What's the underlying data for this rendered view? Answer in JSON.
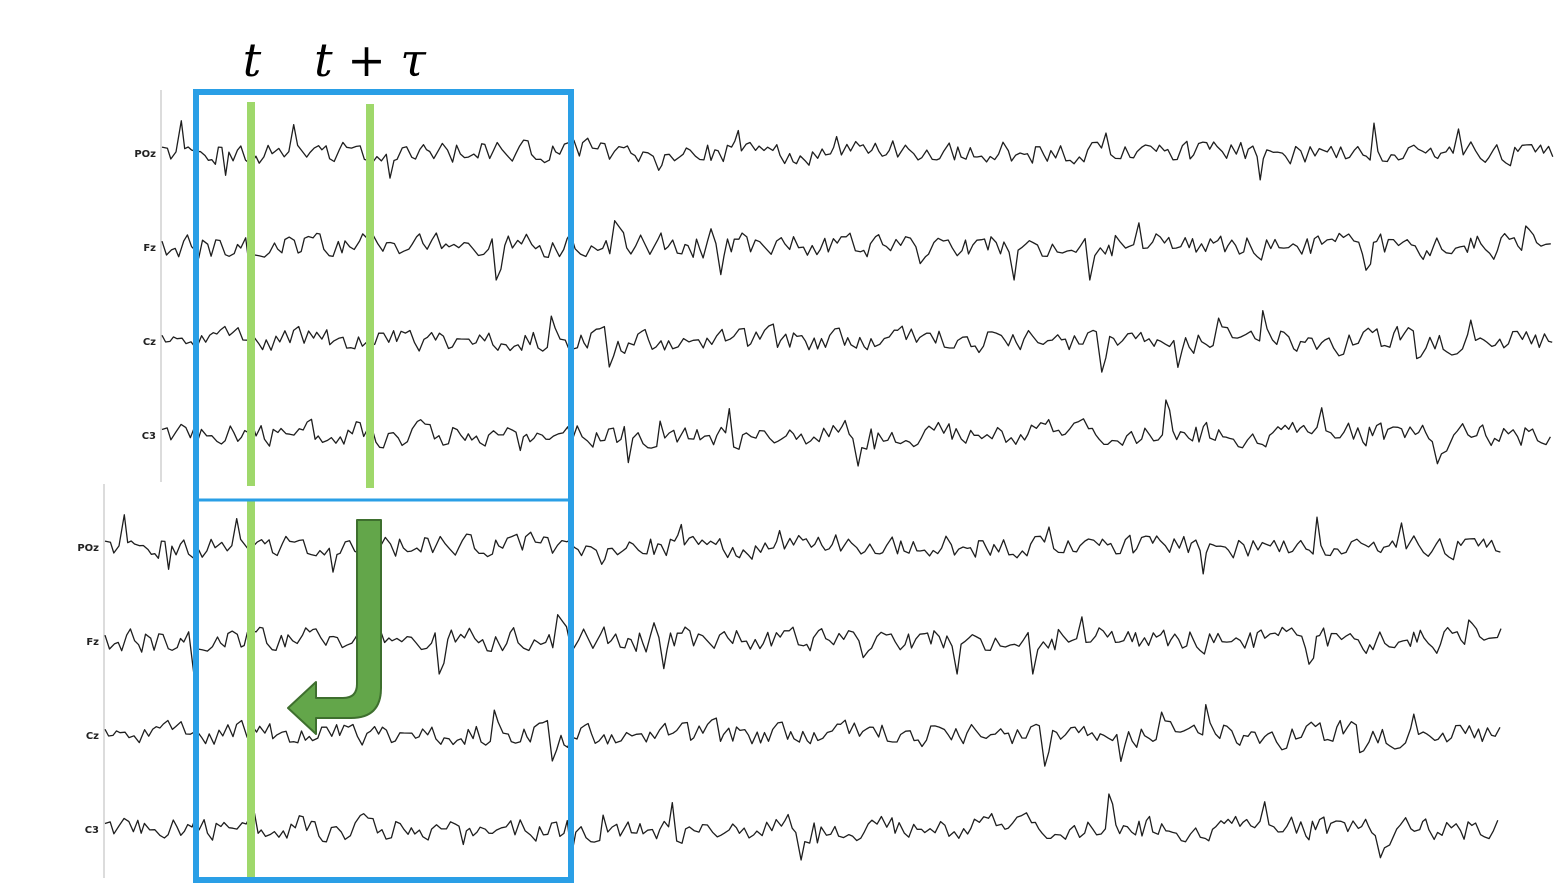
{
  "labels": {
    "t": "t",
    "t_plus_tau": "t + τ"
  },
  "channels": [
    "POz",
    "Fz",
    "Cz",
    "C3"
  ],
  "colors": {
    "window_box": "#2a9fe6",
    "time_marker": "#9fd86b",
    "arrow_fill": "#63a64a",
    "arrow_stroke": "#3e6f2e",
    "trace": "#1e1e1e"
  },
  "icons": {
    "shift_arrow": "bent-down-left-arrow"
  }
}
